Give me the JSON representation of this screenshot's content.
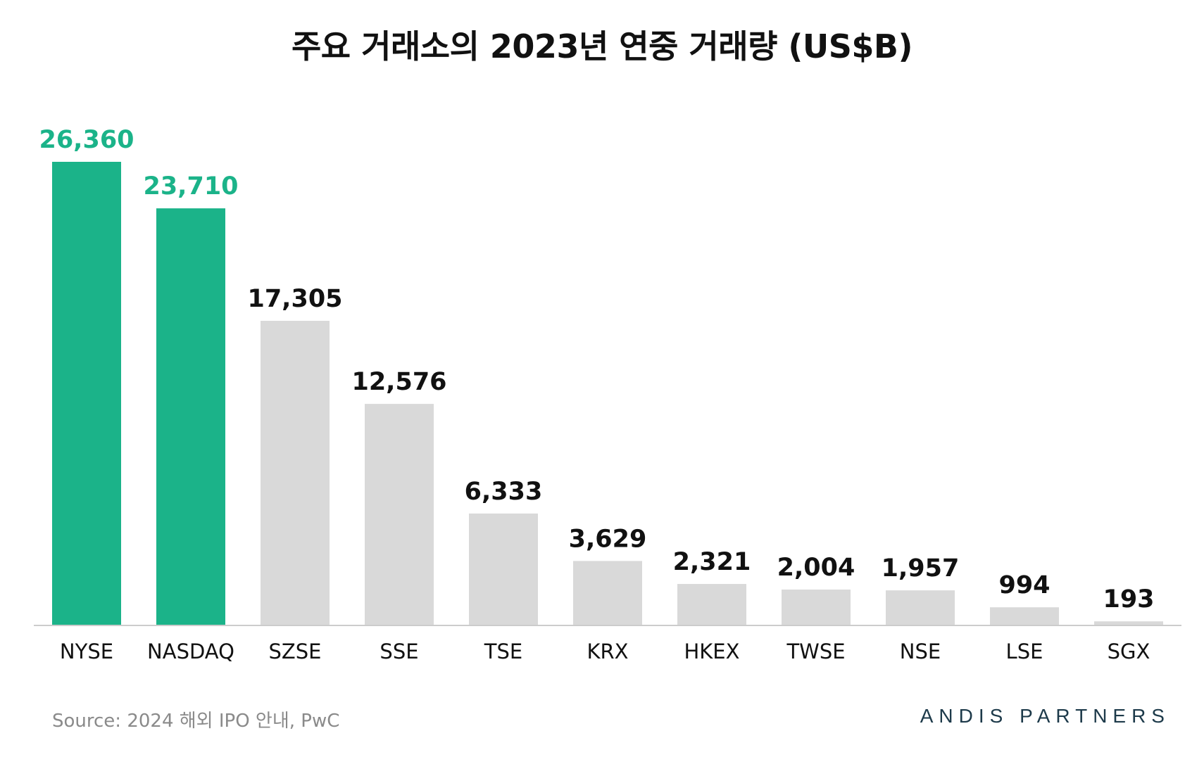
{
  "chart_data": {
    "type": "bar",
    "title": "주요 거래소의 2023년 연중 거래량 (US$B)",
    "categories": [
      "NYSE",
      "NASDAQ",
      "SZSE",
      "SSE",
      "TSE",
      "KRX",
      "HKEX",
      "TWSE",
      "NSE",
      "LSE",
      "SGX"
    ],
    "values": [
      26360,
      23710,
      17305,
      12576,
      6333,
      3629,
      2321,
      2004,
      1957,
      994,
      193
    ],
    "value_labels": [
      "26,360",
      "23,710",
      "17,305",
      "12,576",
      "6,333",
      "3,629",
      "2,321",
      "2,004",
      "1,957",
      "994",
      "193"
    ],
    "highlighted": [
      true,
      true,
      false,
      false,
      false,
      false,
      false,
      false,
      false,
      false,
      false
    ],
    "xlabel": "",
    "ylabel": "",
    "ylim": [
      0,
      26360
    ],
    "grid": false,
    "colors": {
      "highlight": "#1bb389",
      "default": "#d9d9d9",
      "highlight_label": "#1bb389",
      "default_label": "#111111",
      "axis": "#cccccc"
    }
  },
  "footer": {
    "source": "Source: 2024 해외 IPO 안내, PwC",
    "brand": "ANDIS PARTNERS"
  }
}
